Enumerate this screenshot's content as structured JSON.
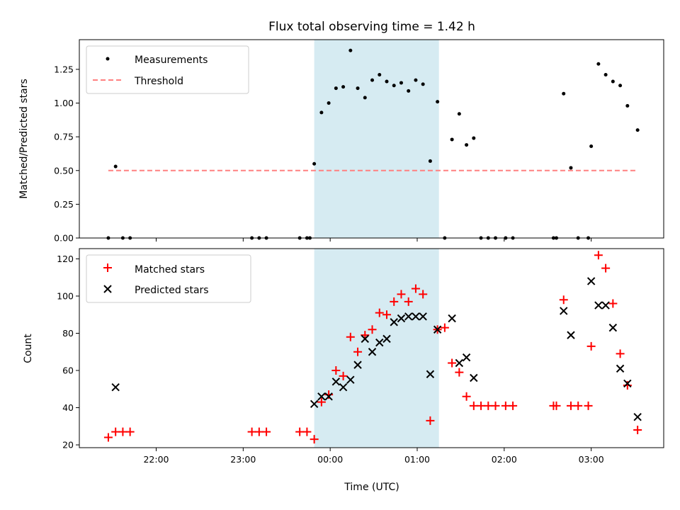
{
  "title": "Flux total observing time = 1.42 h",
  "colors": {
    "shade": "#add8e6",
    "threshold": "#ff8080",
    "measurements": "#000000",
    "matched": "#ff0000",
    "predicted": "#000000"
  },
  "chart_data": [
    {
      "type": "scatter",
      "ylabel": "Matched/Predicted stars",
      "ylim": [
        0,
        1.47
      ],
      "yticks": [
        "0.00",
        "0.25",
        "0.50",
        "0.75",
        "1.00",
        "1.25"
      ],
      "ytick_values": [
        0,
        0.25,
        0.5,
        0.75,
        1.0,
        1.25
      ],
      "xlim": [
        "21:07",
        "03:50"
      ],
      "shaded_span": [
        "23:49",
        "01:15"
      ],
      "legend": {
        "placement": "top-left",
        "entries": [
          "Measurements",
          "Threshold"
        ]
      },
      "threshold": {
        "name": "Threshold",
        "value": 0.5,
        "x_range": [
          "21:27",
          "03:32"
        ],
        "style": "dashed"
      },
      "series": [
        {
          "name": "Measurements",
          "marker": "dot",
          "points": [
            [
              "21:27",
              0.0
            ],
            [
              "21:32",
              0.53
            ],
            [
              "21:37",
              0.0
            ],
            [
              "21:42",
              0.0
            ],
            [
              "23:06",
              0.0
            ],
            [
              "23:11",
              0.0
            ],
            [
              "23:16",
              0.0
            ],
            [
              "23:39",
              0.0
            ],
            [
              "23:44",
              0.0
            ],
            [
              "23:46",
              0.0
            ],
            [
              "23:49",
              0.55
            ],
            [
              "23:54",
              0.93
            ],
            [
              "23:59",
              1.0
            ],
            [
              "00:04",
              1.11
            ],
            [
              "00:09",
              1.12
            ],
            [
              "00:14",
              1.39
            ],
            [
              "00:19",
              1.11
            ],
            [
              "00:24",
              1.04
            ],
            [
              "00:29",
              1.17
            ],
            [
              "00:34",
              1.21
            ],
            [
              "00:39",
              1.16
            ],
            [
              "00:44",
              1.13
            ],
            [
              "00:49",
              1.15
            ],
            [
              "00:54",
              1.09
            ],
            [
              "00:59",
              1.17
            ],
            [
              "01:04",
              1.14
            ],
            [
              "01:09",
              0.57
            ],
            [
              "01:14",
              1.01
            ],
            [
              "01:19",
              0.0
            ],
            [
              "01:24",
              0.73
            ],
            [
              "01:29",
              0.92
            ],
            [
              "01:34",
              0.69
            ],
            [
              "01:39",
              0.74
            ],
            [
              "01:44",
              0.0
            ],
            [
              "01:49",
              0.0
            ],
            [
              "01:54",
              0.0
            ],
            [
              "02:01",
              0.0
            ],
            [
              "02:06",
              0.0
            ],
            [
              "02:34",
              0.0
            ],
            [
              "02:36",
              0.0
            ],
            [
              "02:41",
              1.07
            ],
            [
              "02:46",
              0.52
            ],
            [
              "02:51",
              0.0
            ],
            [
              "02:58",
              0.0
            ],
            [
              "03:00",
              0.68
            ],
            [
              "03:05",
              1.29
            ],
            [
              "03:10",
              1.21
            ],
            [
              "03:15",
              1.16
            ],
            [
              "03:20",
              1.13
            ],
            [
              "03:25",
              0.98
            ],
            [
              "03:32",
              0.8
            ]
          ]
        }
      ]
    },
    {
      "type": "scatter",
      "ylabel": "Count",
      "xlabel": "Time (UTC)",
      "ylim": [
        18.5,
        125.5
      ],
      "yticks": [
        "20",
        "40",
        "60",
        "80",
        "100",
        "120"
      ],
      "ytick_values": [
        20,
        40,
        60,
        80,
        100,
        120
      ],
      "xticks": [
        "22:00",
        "23:00",
        "00:00",
        "01:00",
        "02:00",
        "03:00"
      ],
      "xlim": [
        "21:07",
        "03:50"
      ],
      "shaded_span": [
        "23:49",
        "01:15"
      ],
      "legend": {
        "placement": "top-left",
        "entries": [
          "Matched stars",
          "Predicted stars"
        ]
      },
      "series": [
        {
          "name": "Matched stars",
          "marker": "plus",
          "points": [
            [
              "21:27",
              24
            ],
            [
              "21:32",
              27
            ],
            [
              "21:37",
              27
            ],
            [
              "21:42",
              27
            ],
            [
              "23:06",
              27
            ],
            [
              "23:11",
              27
            ],
            [
              "23:16",
              27
            ],
            [
              "23:39",
              27
            ],
            [
              "23:44",
              27
            ],
            [
              "23:49",
              23
            ],
            [
              "23:54",
              43
            ],
            [
              "23:59",
              47
            ],
            [
              "00:04",
              60
            ],
            [
              "00:09",
              57
            ],
            [
              "00:14",
              78
            ],
            [
              "00:19",
              70
            ],
            [
              "00:24",
              79
            ],
            [
              "00:29",
              82
            ],
            [
              "00:34",
              91
            ],
            [
              "00:39",
              90
            ],
            [
              "00:44",
              97
            ],
            [
              "00:49",
              101
            ],
            [
              "00:54",
              97
            ],
            [
              "00:59",
              104
            ],
            [
              "01:04",
              101
            ],
            [
              "01:09",
              33
            ],
            [
              "01:14",
              82
            ],
            [
              "01:19",
              83
            ],
            [
              "01:24",
              64
            ],
            [
              "01:29",
              59
            ],
            [
              "01:34",
              46
            ],
            [
              "01:39",
              41
            ],
            [
              "01:44",
              41
            ],
            [
              "01:49",
              41
            ],
            [
              "01:54",
              41
            ],
            [
              "02:01",
              41
            ],
            [
              "02:06",
              41
            ],
            [
              "02:34",
              41
            ],
            [
              "02:36",
              41
            ],
            [
              "02:41",
              98
            ],
            [
              "02:46",
              41
            ],
            [
              "02:51",
              41
            ],
            [
              "02:58",
              41
            ],
            [
              "03:00",
              73
            ],
            [
              "03:05",
              122
            ],
            [
              "03:10",
              115
            ],
            [
              "03:15",
              96
            ],
            [
              "03:20",
              69
            ],
            [
              "03:25",
              52
            ],
            [
              "03:32",
              28
            ]
          ]
        },
        {
          "name": "Predicted stars",
          "marker": "x",
          "points": [
            [
              "21:32",
              51
            ],
            [
              "23:49",
              42
            ],
            [
              "23:54",
              46
            ],
            [
              "23:59",
              46
            ],
            [
              "00:04",
              54
            ],
            [
              "00:09",
              51
            ],
            [
              "00:14",
              55
            ],
            [
              "00:19",
              63
            ],
            [
              "00:24",
              77
            ],
            [
              "00:29",
              70
            ],
            [
              "00:34",
              75
            ],
            [
              "00:39",
              77
            ],
            [
              "00:44",
              86
            ],
            [
              "00:49",
              88
            ],
            [
              "00:54",
              89
            ],
            [
              "00:59",
              89
            ],
            [
              "01:04",
              89
            ],
            [
              "01:09",
              58
            ],
            [
              "01:14",
              82
            ],
            [
              "01:24",
              88
            ],
            [
              "01:29",
              64
            ],
            [
              "01:34",
              67
            ],
            [
              "01:39",
              56
            ],
            [
              "02:41",
              92
            ],
            [
              "02:46",
              79
            ],
            [
              "03:00",
              108
            ],
            [
              "03:05",
              95
            ],
            [
              "03:10",
              95
            ],
            [
              "03:15",
              83
            ],
            [
              "03:20",
              61
            ],
            [
              "03:25",
              53
            ],
            [
              "03:32",
              35
            ]
          ]
        }
      ]
    }
  ]
}
